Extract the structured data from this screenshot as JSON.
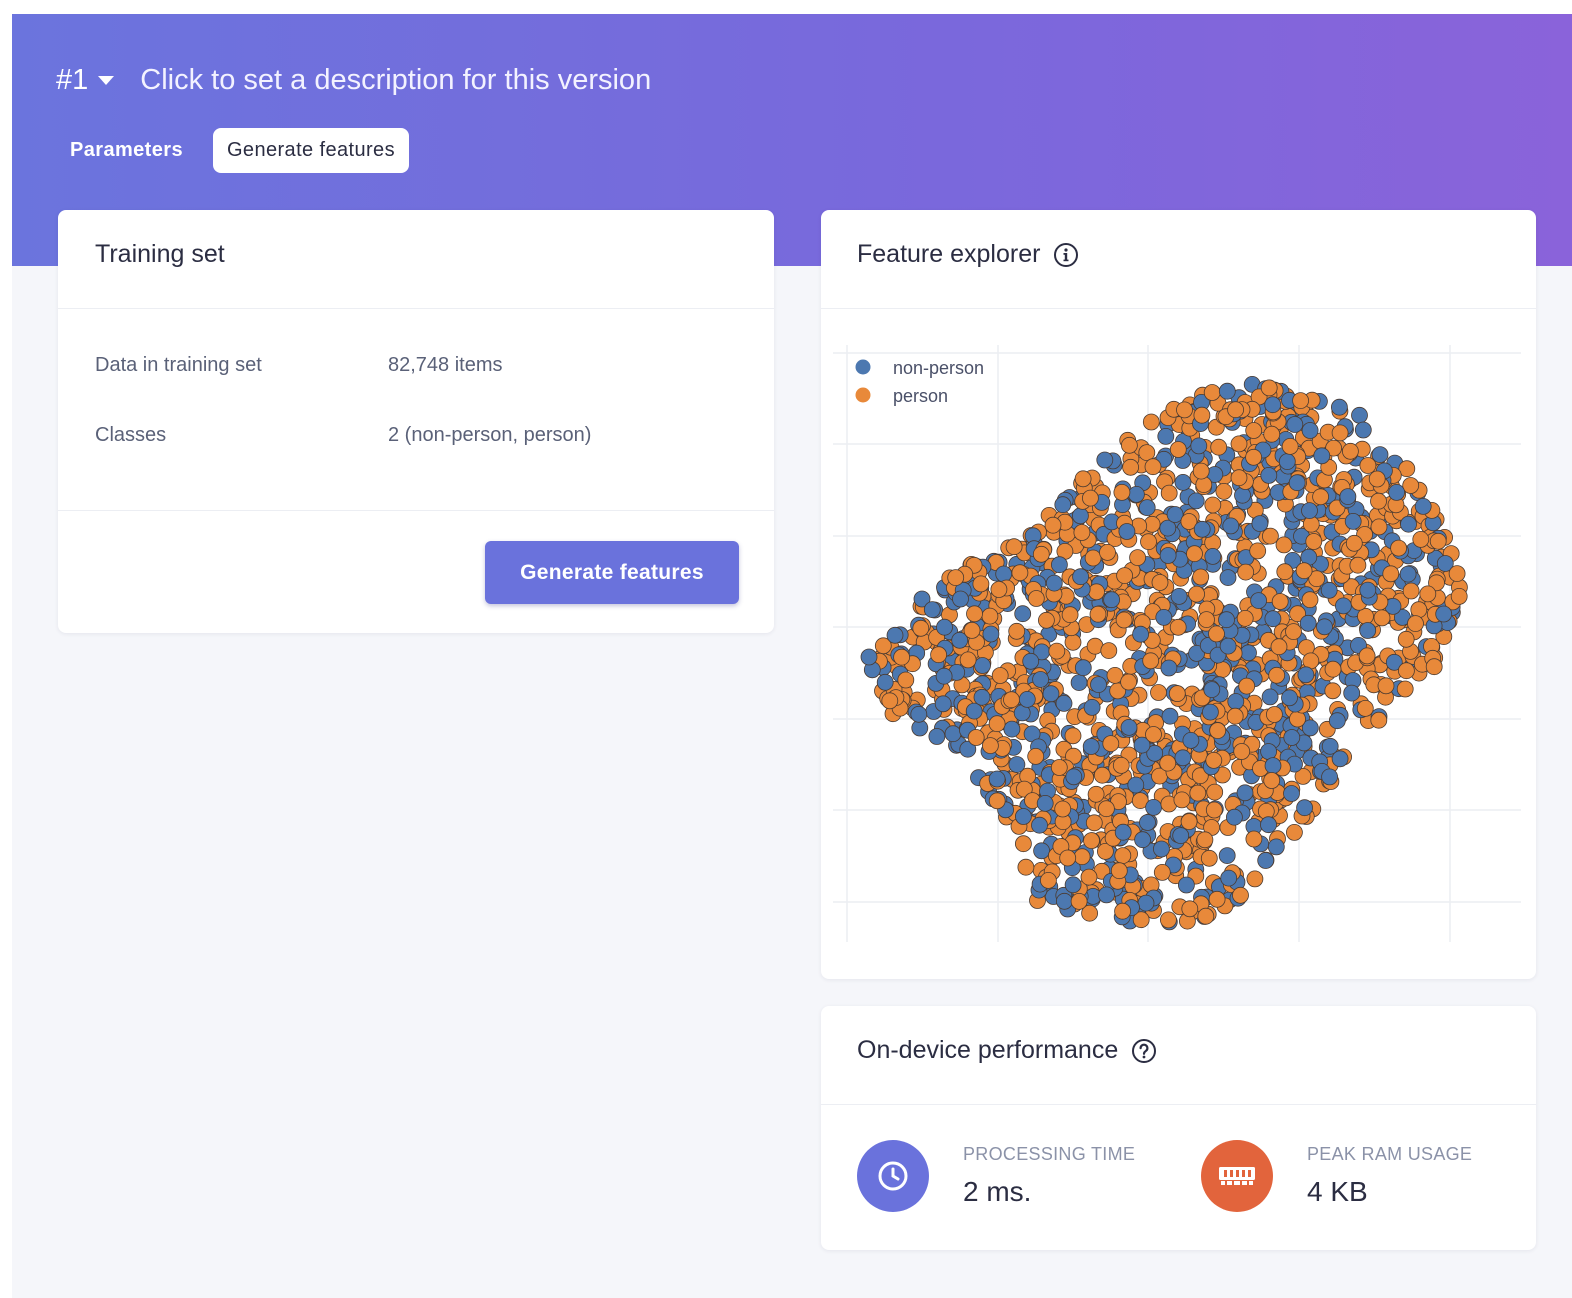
{
  "header": {
    "version_number": "#1",
    "version_description": "Click to set a description for this version",
    "tabs": [
      {
        "label": "Parameters",
        "active": false
      },
      {
        "label": "Generate features",
        "active": true
      }
    ]
  },
  "training_set": {
    "title": "Training set",
    "rows": [
      {
        "label": "Data in training set",
        "value": "82,748 items"
      },
      {
        "label": "Classes",
        "value": "2 (non-person, person)"
      }
    ],
    "button_label": "Generate features"
  },
  "feature_explorer": {
    "title": "Feature explorer",
    "info_icon": "info-icon"
  },
  "chart_data": {
    "type": "scatter",
    "title": "",
    "legend": [
      {
        "name": "non-person",
        "color": "#4c78b0"
      },
      {
        "name": "person",
        "color": "#e8893a"
      }
    ],
    "legend_position": "top-left",
    "grid": true,
    "xlim": [
      0,
      1
    ],
    "ylim": [
      0,
      1
    ],
    "series": [
      {
        "name": "non-person",
        "color": "#4c78b0",
        "count": 700
      },
      {
        "name": "person",
        "color": "#e8893a",
        "count": 1000
      }
    ]
  },
  "performance": {
    "title": "On-device performance",
    "help_icon": "help-icon",
    "metrics": [
      {
        "label": "PROCESSING TIME",
        "value": "2 ms.",
        "icon": "clock-icon",
        "color": "#6a72dc"
      },
      {
        "label": "PEAK RAM USAGE",
        "value": "4 KB",
        "icon": "memory-icon",
        "color": "#e2643c"
      }
    ]
  }
}
